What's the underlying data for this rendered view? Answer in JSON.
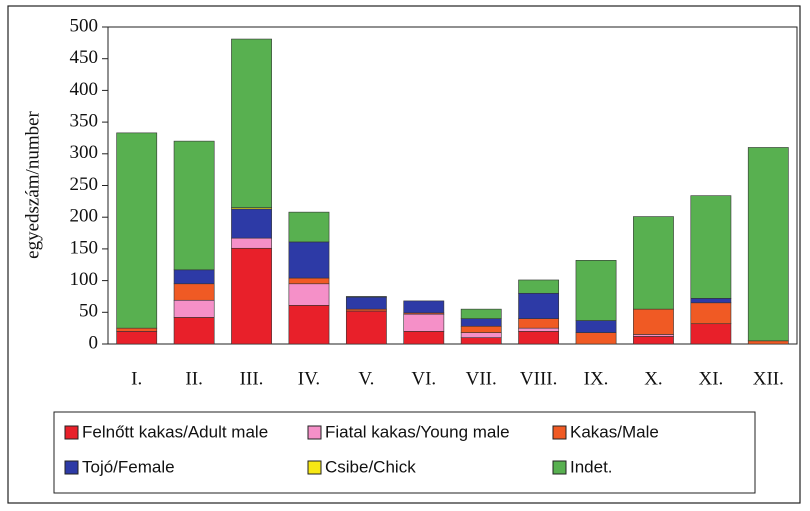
{
  "chart_data": {
    "type": "stacked_bar",
    "y_label": "egyedszám/number",
    "categories": [
      "I.",
      "II.",
      "III.",
      "IV.",
      "V.",
      "VI.",
      "VII.",
      "VIII.",
      "IX.",
      "X.",
      "XI.",
      "XII."
    ],
    "series": [
      {
        "name": "Felnőtt kakas/Adult male",
        "color": "#e8202a",
        "values": [
          20,
          42,
          151,
          61,
          52,
          20,
          10,
          20,
          0,
          12,
          32,
          0
        ]
      },
      {
        "name": "Fiatal kakas/Young male",
        "color": "#f590c8",
        "values": [
          0,
          27,
          16,
          34,
          0,
          27,
          8,
          5,
          0,
          3,
          0,
          0
        ]
      },
      {
        "name": "Kakas/Male",
        "color": "#f05a24",
        "values": [
          5,
          26,
          0,
          9,
          3,
          2,
          10,
          15,
          18,
          40,
          33,
          5
        ]
      },
      {
        "name": "Tojó/Female",
        "color": "#2d3aa6",
        "values": [
          0,
          22,
          46,
          57,
          19,
          19,
          12,
          40,
          19,
          0,
          7,
          0
        ]
      },
      {
        "name": "Csibe/Chick",
        "color": "#f7e814",
        "values": [
          0,
          0,
          2,
          0,
          0,
          0,
          0,
          0,
          0,
          0,
          0,
          0
        ]
      },
      {
        "name": "Indet.",
        "color": "#58b050",
        "values": [
          308,
          203,
          266,
          47,
          1,
          0,
          15,
          21,
          95,
          146,
          162,
          305
        ]
      }
    ],
    "ylim": [
      0,
      500
    ],
    "yticks": [
      0,
      50,
      100,
      150,
      200,
      250,
      300,
      350,
      400,
      450,
      500
    ]
  }
}
